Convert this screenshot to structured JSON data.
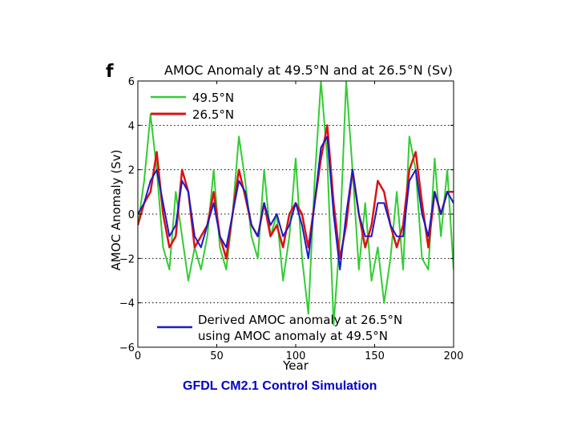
{
  "panel_label": "f",
  "caption": "GFDL CM2.1 Control Simulation",
  "chart_data": {
    "type": "line",
    "title": "AMOC Anomaly at 49.5°N and at 26.5°N (Sv)",
    "xlabel": "Year",
    "ylabel": "AMOC Anomaly (Sv)",
    "xlim": [
      0,
      200
    ],
    "ylim": [
      -6,
      6
    ],
    "xticks": [
      0,
      50,
      100,
      150,
      200
    ],
    "yticks": [
      -6,
      -4,
      -2,
      0,
      2,
      4,
      6
    ],
    "xtick_labels": [
      "0",
      "50",
      "100",
      "150",
      "200"
    ],
    "ytick_labels": [
      "−6",
      "−4",
      "−2",
      "0",
      "2",
      "4",
      "6"
    ],
    "grid": "horizontal dotted",
    "legend_top": [
      {
        "label": "49.5°N",
        "color": "#33cc33"
      },
      {
        "label": "26.5°N",
        "color": "#dd1111"
      }
    ],
    "legend_bottom": {
      "line1": "Derived AMOC anomaly at 26.5°N",
      "line2": "using AMOC anomaly at 49.5°N",
      "color": "#1a1acc"
    },
    "x": [
      0,
      4,
      8,
      12,
      16,
      20,
      24,
      28,
      32,
      36,
      40,
      44,
      48,
      52,
      56,
      60,
      64,
      68,
      72,
      76,
      80,
      84,
      88,
      92,
      96,
      100,
      104,
      108,
      112,
      116,
      120,
      124,
      128,
      132,
      136,
      140,
      144,
      148,
      152,
      156,
      160,
      164,
      168,
      172,
      176,
      180,
      184,
      188,
      192,
      196,
      200
    ],
    "series": [
      {
        "name": "49.5°N",
        "color": "#33cc33",
        "values": [
          -0.5,
          1.5,
          4.5,
          2.0,
          -1.5,
          -2.5,
          1.0,
          -1.0,
          -3.0,
          -1.5,
          -2.5,
          -1.0,
          2.0,
          -1.5,
          -2.5,
          0.0,
          3.5,
          1.5,
          -1.0,
          -2.0,
          2.0,
          -1.0,
          0.0,
          -3.0,
          -1.0,
          2.5,
          -2.0,
          -4.5,
          1.5,
          6.0,
          2.5,
          -5.0,
          -1.0,
          6.0,
          2.0,
          -2.5,
          0.5,
          -3.0,
          -1.5,
          -4.0,
          -2.0,
          1.0,
          -2.5,
          3.5,
          2.0,
          -2.0,
          -2.5,
          2.5,
          -1.0,
          2.0,
          -2.5
        ]
      },
      {
        "name": "26.5°N",
        "color": "#dd1111",
        "values": [
          -0.5,
          0.5,
          1.0,
          2.8,
          0.0,
          -1.5,
          -1.0,
          2.0,
          1.0,
          -1.5,
          -1.0,
          -0.5,
          1.0,
          -1.0,
          -2.0,
          0.0,
          2.0,
          0.8,
          -0.5,
          -1.0,
          0.5,
          -1.0,
          -0.5,
          -1.5,
          0.0,
          0.5,
          0.0,
          -1.5,
          0.5,
          2.5,
          4.0,
          0.5,
          -2.0,
          -0.5,
          2.0,
          0.0,
          -1.5,
          -0.5,
          1.5,
          1.0,
          -0.5,
          -1.5,
          -0.5,
          2.0,
          2.8,
          0.5,
          -1.5,
          1.0,
          0.0,
          1.0,
          1.0
        ]
      },
      {
        "name": "Derived AMOC anomaly at 26.5°N",
        "color": "#1a1acc",
        "values": [
          0.0,
          0.5,
          1.5,
          2.0,
          0.5,
          -1.0,
          -0.5,
          1.5,
          1.0,
          -1.0,
          -1.5,
          -0.5,
          0.5,
          -1.0,
          -1.5,
          0.0,
          1.5,
          1.0,
          -0.5,
          -1.0,
          0.5,
          -0.5,
          0.0,
          -1.0,
          -0.5,
          0.5,
          -0.5,
          -2.0,
          0.5,
          3.0,
          3.5,
          0.0,
          -2.5,
          0.0,
          2.0,
          0.0,
          -1.0,
          -1.0,
          0.5,
          0.5,
          -0.5,
          -1.0,
          -1.0,
          1.5,
          2.0,
          0.0,
          -1.0,
          1.0,
          0.0,
          1.0,
          0.5
        ]
      }
    ]
  }
}
